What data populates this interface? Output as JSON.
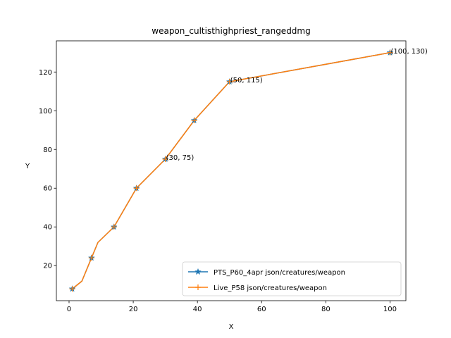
{
  "chart_data": {
    "type": "line",
    "title": "weapon_cultisthighpriest_rangeddmg",
    "xlabel": "X",
    "ylabel": "Y",
    "xlim": [
      -3.95,
      104.95
    ],
    "ylim": [
      1.9,
      136.1
    ],
    "xticks": [
      0,
      20,
      40,
      60,
      80,
      100
    ],
    "yticks": [
      20,
      40,
      60,
      80,
      100,
      120
    ],
    "grid": false,
    "legend_position": "lower-right",
    "series": [
      {
        "name": "PTS_P60_4apr json/creatures/weapon",
        "color": "#1f77b4",
        "marker": "star",
        "x": [
          1,
          4,
          7,
          9,
          14,
          21,
          30,
          39,
          50,
          100
        ],
        "y": [
          8,
          12,
          24,
          32,
          40,
          60,
          75,
          95,
          115,
          130
        ],
        "marked_x": [
          1,
          7,
          14,
          21,
          30,
          39,
          50,
          100
        ]
      },
      {
        "name": "Live_P58 json/creatures/weapon",
        "color": "#ff7f0e",
        "marker": "plus",
        "x": [
          1,
          4,
          7,
          9,
          14,
          21,
          30,
          39,
          50,
          100
        ],
        "y": [
          8,
          12,
          24,
          32,
          40,
          60,
          75,
          95,
          115,
          130
        ],
        "marked_x": [
          1,
          7,
          14,
          21,
          30,
          39,
          50,
          100
        ]
      }
    ],
    "annotations": [
      {
        "x": 30,
        "y": 75,
        "text": "(30, 75)"
      },
      {
        "x": 50,
        "y": 115,
        "text": "(50, 115)"
      },
      {
        "x": 100,
        "y": 130,
        "text": "(100, 130)"
      }
    ]
  }
}
